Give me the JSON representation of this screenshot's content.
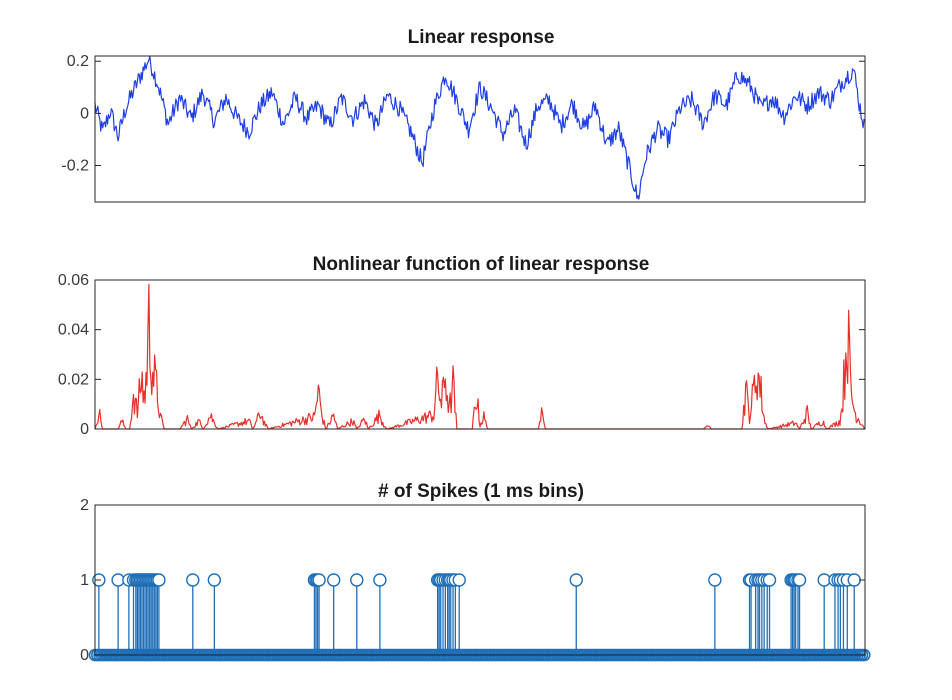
{
  "chart_data": [
    {
      "type": "line",
      "title": "Linear response",
      "xlabel": "",
      "ylabel": "",
      "ylim": [
        -0.34,
        0.22
      ],
      "yticks": [
        0.2,
        0,
        -0.2
      ],
      "ytick_labels": [
        "0.2",
        "0",
        "-0.2"
      ],
      "xlim": [
        0,
        1000
      ],
      "grid": false,
      "color": "#1f3fe6",
      "series": [
        {
          "points": [
            [
              0,
              0.03
            ],
            [
              10,
              -0.07
            ],
            [
              20,
              0.01
            ],
            [
              30,
              -0.09
            ],
            [
              40,
              0.02
            ],
            [
              55,
              0.12
            ],
            [
              70,
              0.21
            ],
            [
              82,
              0.11
            ],
            [
              95,
              -0.04
            ],
            [
              110,
              0.06
            ],
            [
              125,
              -0.02
            ],
            [
              140,
              0.08
            ],
            [
              155,
              -0.03
            ],
            [
              170,
              0.06
            ],
            [
              185,
              -0.02
            ],
            [
              200,
              -0.07
            ],
            [
              215,
              0.03
            ],
            [
              230,
              0.08
            ],
            [
              245,
              -0.04
            ],
            [
              260,
              0.06
            ],
            [
              275,
              -0.02
            ],
            [
              290,
              0.03
            ],
            [
              305,
              -0.05
            ],
            [
              320,
              0.06
            ],
            [
              335,
              -0.02
            ],
            [
              350,
              0.05
            ],
            [
              365,
              -0.05
            ],
            [
              380,
              0.07
            ],
            [
              395,
              0.02
            ],
            [
              410,
              -0.07
            ],
            [
              425,
              -0.19
            ],
            [
              440,
              0.02
            ],
            [
              455,
              0.15
            ],
            [
              470,
              0.05
            ],
            [
              485,
              -0.06
            ],
            [
              500,
              0.1
            ],
            [
              515,
              0.02
            ],
            [
              530,
              -0.08
            ],
            [
              545,
              0.01
            ],
            [
              560,
              -0.12
            ],
            [
              575,
              0.03
            ],
            [
              590,
              0.05
            ],
            [
              605,
              -0.05
            ],
            [
              620,
              0.04
            ],
            [
              635,
              -0.06
            ],
            [
              650,
              0.03
            ],
            [
              665,
              -0.12
            ],
            [
              680,
              -0.06
            ],
            [
              695,
              -0.22
            ],
            [
              705,
              -0.33
            ],
            [
              715,
              -0.17
            ],
            [
              730,
              -0.06
            ],
            [
              745,
              -0.1
            ],
            [
              760,
              0.02
            ],
            [
              775,
              0.05
            ],
            [
              790,
              -0.04
            ],
            [
              805,
              0.07
            ],
            [
              820,
              0.03
            ],
            [
              835,
              0.15
            ],
            [
              850,
              0.11
            ],
            [
              865,
              0.02
            ],
            [
              880,
              0.06
            ],
            [
              895,
              -0.01
            ],
            [
              910,
              0.07
            ],
            [
              925,
              0.03
            ],
            [
              940,
              0.08
            ],
            [
              955,
              0.05
            ],
            [
              970,
              0.12
            ],
            [
              985,
              0.17
            ],
            [
              993,
              0.03
            ],
            [
              1000,
              -0.06
            ]
          ]
        }
      ]
    },
    {
      "type": "line",
      "title": "Nonlinear function of linear response",
      "xlabel": "",
      "ylabel": "",
      "ylim": [
        0,
        0.06
      ],
      "yticks": [
        0.06,
        0.04,
        0.02,
        0
      ],
      "ytick_labels": [
        "0.06",
        "0.04",
        "0.02",
        "0"
      ],
      "xlim": [
        0,
        1000
      ],
      "grid": false,
      "color": "#e8302a",
      "series": [
        {
          "points": [
            [
              0,
              0
            ],
            [
              5,
              0.009
            ],
            [
              10,
              0
            ],
            [
              30,
              0
            ],
            [
              35,
              0.004
            ],
            [
              40,
              0
            ],
            [
              45,
              0
            ],
            [
              50,
              0.018
            ],
            [
              55,
              0.008
            ],
            [
              60,
              0.025
            ],
            [
              65,
              0.015
            ],
            [
              70,
              0.052
            ],
            [
              75,
              0.03
            ],
            [
              80,
              0.02
            ],
            [
              85,
              0.006
            ],
            [
              90,
              0
            ],
            [
              110,
              0
            ],
            [
              120,
              0.005
            ],
            [
              125,
              0
            ],
            [
              135,
              0.004
            ],
            [
              140,
              0
            ],
            [
              150,
              0.007
            ],
            [
              155,
              0.003
            ],
            [
              160,
              0
            ],
            [
              200,
              0.004
            ],
            [
              205,
              0
            ],
            [
              215,
              0.008
            ],
            [
              220,
              0.003
            ],
            [
              225,
              0
            ],
            [
              285,
              0.006
            ],
            [
              290,
              0.019
            ],
            [
              295,
              0.006
            ],
            [
              300,
              0
            ],
            [
              310,
              0.007
            ],
            [
              315,
              0
            ],
            [
              335,
              0.004
            ],
            [
              340,
              0
            ],
            [
              350,
              0.005
            ],
            [
              355,
              0
            ],
            [
              370,
              0.007
            ],
            [
              375,
              0.002
            ],
            [
              380,
              0
            ],
            [
              440,
              0.007
            ],
            [
              445,
              0.025
            ],
            [
              450,
              0.012
            ],
            [
              455,
              0.027
            ],
            [
              460,
              0.009
            ],
            [
              465,
              0.022
            ],
            [
              470,
              0
            ],
            [
              490,
              0
            ],
            [
              495,
              0.018
            ],
            [
              500,
              0.002
            ],
            [
              505,
              0.006
            ],
            [
              510,
              0
            ],
            [
              575,
              0
            ],
            [
              580,
              0.007
            ],
            [
              585,
              0
            ],
            [
              790,
              0
            ],
            [
              795,
              0.003
            ],
            [
              800,
              0
            ],
            [
              840,
              0
            ],
            [
              845,
              0.02
            ],
            [
              850,
              0.006
            ],
            [
              860,
              0.03
            ],
            [
              865,
              0.018
            ],
            [
              870,
              0.003
            ],
            [
              875,
              0
            ],
            [
              910,
              0.003
            ],
            [
              915,
              0
            ],
            [
              925,
              0.008
            ],
            [
              930,
              0
            ],
            [
              945,
              0.004
            ],
            [
              950,
              0
            ],
            [
              968,
              0.004
            ],
            [
              972,
              0.02
            ],
            [
              977,
              0.052
            ],
            [
              982,
              0.018
            ],
            [
              987,
              0.008
            ],
            [
              992,
              0.005
            ],
            [
              1000,
              0
            ]
          ]
        }
      ]
    },
    {
      "type": "scatter",
      "chart_style": "stem",
      "title": "# of Spikes (1 ms bins)",
      "xlabel": "",
      "ylabel": "",
      "ylim": [
        0,
        2
      ],
      "yticks": [
        2,
        1,
        0
      ],
      "ytick_labels": [
        "2",
        "1",
        "0"
      ],
      "xlim": [
        0,
        1000
      ],
      "grid": false,
      "color": "#1f6fb8",
      "series": [
        {
          "spike_times": [
            5,
            30,
            44,
            50,
            53,
            55,
            57,
            59,
            61,
            63,
            65,
            67,
            69,
            71,
            73,
            75,
            77,
            79,
            81,
            83,
            127,
            155,
            285,
            287,
            289,
            291,
            310,
            340,
            370,
            445,
            447,
            449,
            452,
            455,
            458,
            460,
            462,
            465,
            468,
            473,
            625,
            805,
            850,
            852,
            858,
            861,
            863,
            866,
            869,
            873,
            876,
            904,
            906,
            908,
            910,
            913,
            915,
            947,
            961,
            965,
            968,
            972,
            977,
            986
          ]
        }
      ]
    }
  ]
}
